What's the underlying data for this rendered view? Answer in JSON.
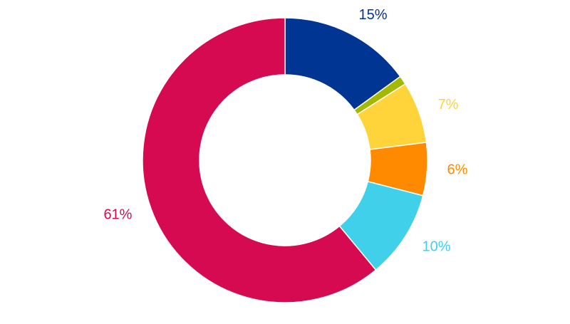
{
  "chart_data": {
    "type": "donut",
    "values": [
      15,
      1,
      7,
      6,
      10,
      61
    ],
    "value_labels": [
      "15%",
      null,
      "7%",
      "6%",
      "10%",
      "61%"
    ],
    "colors": [
      "#003594",
      "#a5b800",
      "#ffd33a",
      "#ff8a00",
      "#41d0ea",
      "#d60a50"
    ]
  }
}
